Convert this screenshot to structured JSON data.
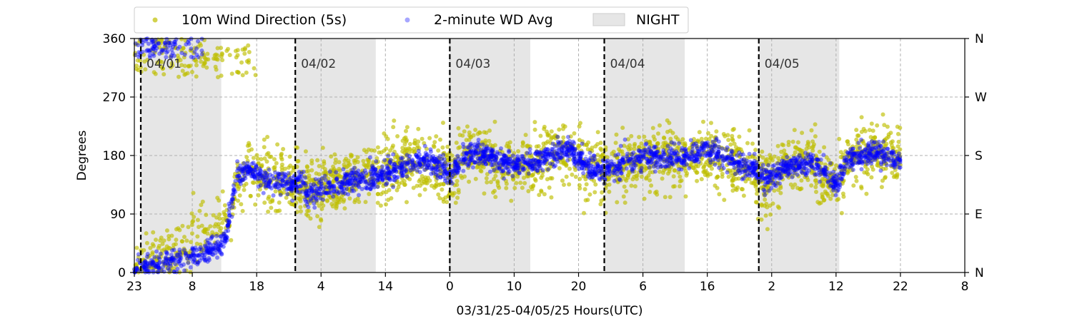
{
  "chart_data": {
    "type": "scatter",
    "xlabel": "03/31/25-04/05/25  Hours(UTC)",
    "ylabel": "Degrees",
    "ylim": [
      0,
      360
    ],
    "xlim_hours": [
      -1,
      128
    ],
    "grid": true,
    "legend_placement": "top-left, above plot",
    "x_tick_labels": [
      "23",
      "8",
      "18",
      "4",
      "14",
      "0",
      "10",
      "20",
      "6",
      "16",
      "2",
      "12",
      "22",
      "8"
    ],
    "x_tick_hours": [
      -1,
      8,
      18,
      28,
      38,
      48,
      58,
      68,
      78,
      88,
      98,
      108,
      118,
      128
    ],
    "y_tick_values": [
      0,
      90,
      180,
      270,
      360
    ],
    "y_tick_labels": [
      "0",
      "90",
      "180",
      "270",
      "360"
    ],
    "right_axis_labels": [
      "N",
      "E",
      "S",
      "W",
      "N"
    ],
    "day_markers": [
      {
        "label": "04/01",
        "hour": 0
      },
      {
        "label": "04/02",
        "hour": 24
      },
      {
        "label": "04/03",
        "hour": 48
      },
      {
        "label": "04/04",
        "hour": 72
      },
      {
        "label": "04/05",
        "hour": 96
      }
    ],
    "night_periods": [
      [
        0,
        12.5
      ],
      [
        24,
        36.5
      ],
      [
        48,
        60.5
      ],
      [
        72,
        84.5
      ],
      [
        96,
        108.5
      ]
    ],
    "series": [
      {
        "name": "10m Wind Direction (5s)",
        "color": "#bfbf00",
        "marker": "dot",
        "trend": [
          [
            -1,
            10
          ],
          [
            2,
            20
          ],
          [
            6,
            35
          ],
          [
            10,
            55
          ],
          [
            14,
            80
          ],
          [
            15,
            140
          ],
          [
            17,
            160
          ],
          [
            19,
            150
          ],
          [
            21,
            145
          ],
          [
            23,
            140
          ],
          [
            26,
            125
          ],
          [
            30,
            135
          ],
          [
            34,
            145
          ],
          [
            38,
            155
          ],
          [
            42,
            170
          ],
          [
            46,
            160
          ],
          [
            48,
            150
          ],
          [
            51,
            185
          ],
          [
            55,
            170
          ],
          [
            60,
            165
          ],
          [
            64,
            180
          ],
          [
            66,
            185
          ],
          [
            70,
            160
          ],
          [
            72,
            150
          ],
          [
            75,
            170
          ],
          [
            80,
            175
          ],
          [
            84,
            175
          ],
          [
            88,
            185
          ],
          [
            91,
            170
          ],
          [
            95,
            160
          ],
          [
            97,
            130
          ],
          [
            100,
            165
          ],
          [
            104,
            170
          ],
          [
            106,
            150
          ],
          [
            108,
            140
          ],
          [
            110,
            180
          ],
          [
            114,
            185
          ],
          [
            118,
            175
          ]
        ],
        "spread": 45,
        "wrap_region_hours": [
          -1,
          18
        ],
        "wrap_band": [
          300,
          360
        ]
      },
      {
        "name": "2-minute WD Avg",
        "color": "#0000ff",
        "marker": "dot",
        "trend": [
          [
            -1,
            5
          ],
          [
            2,
            10
          ],
          [
            6,
            20
          ],
          [
            10,
            30
          ],
          [
            13,
            45
          ],
          [
            15,
            150
          ],
          [
            17,
            160
          ],
          [
            19,
            145
          ],
          [
            21,
            140
          ],
          [
            23,
            135
          ],
          [
            25,
            140
          ],
          [
            26,
            120
          ],
          [
            28,
            130
          ],
          [
            32,
            140
          ],
          [
            36,
            148
          ],
          [
            40,
            158
          ],
          [
            44,
            175
          ],
          [
            47,
            160
          ],
          [
            48,
            150
          ],
          [
            50,
            175
          ],
          [
            52,
            185
          ],
          [
            56,
            170
          ],
          [
            60,
            165
          ],
          [
            64,
            180
          ],
          [
            66,
            190
          ],
          [
            70,
            160
          ],
          [
            72,
            155
          ],
          [
            75,
            170
          ],
          [
            80,
            180
          ],
          [
            84,
            175
          ],
          [
            88,
            190
          ],
          [
            92,
            170
          ],
          [
            96,
            155
          ],
          [
            97,
            140
          ],
          [
            100,
            160
          ],
          [
            104,
            170
          ],
          [
            107,
            150
          ],
          [
            108,
            135
          ],
          [
            110,
            175
          ],
          [
            114,
            185
          ],
          [
            118,
            172
          ]
        ],
        "spread": 18,
        "wrap_region_hours": [
          -1,
          10
        ],
        "wrap_band": [
          330,
          360
        ]
      },
      {
        "name": "NIGHT",
        "color": "#e6e6e6",
        "marker": "patch"
      }
    ]
  }
}
